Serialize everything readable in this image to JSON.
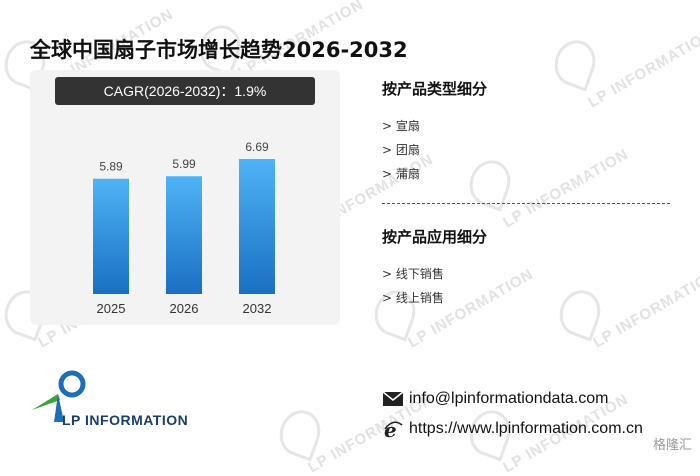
{
  "title": "全球中国扇子市场增长趋势2026-2032",
  "cagr": "CAGR(2026-2032)：1.9%",
  "chart_data": {
    "type": "bar",
    "categories": [
      "2025",
      "2026",
      "2032"
    ],
    "values": [
      5.89,
      5.99,
      6.69
    ],
    "data_labels": [
      "5.89",
      "5.99",
      "6.69"
    ],
    "ylim": [
      0,
      7.5
    ],
    "grid": false,
    "bar_color_top": "#4fb3f6",
    "bar_color_bottom": "#1a6fc2"
  },
  "sections": [
    {
      "title": "按产品类型细分",
      "items": [
        "> 宣扇",
        "> 团扇",
        "> 蒲扇"
      ]
    },
    {
      "title": "按产品应用细分",
      "items": [
        "> 线下销售",
        "> 线上销售"
      ]
    }
  ],
  "contact": {
    "email": "info@lpinformationdata.com",
    "website": "https://www.lpinformation.com.cn",
    "email_icon": "envelope-icon",
    "web_icon": "ie-browser-icon"
  },
  "logo": {
    "text": "LP INFORMATION",
    "icon": "lp-logo-icon"
  },
  "watermark_text": "LP INFORMATION",
  "badge": "格隆汇"
}
